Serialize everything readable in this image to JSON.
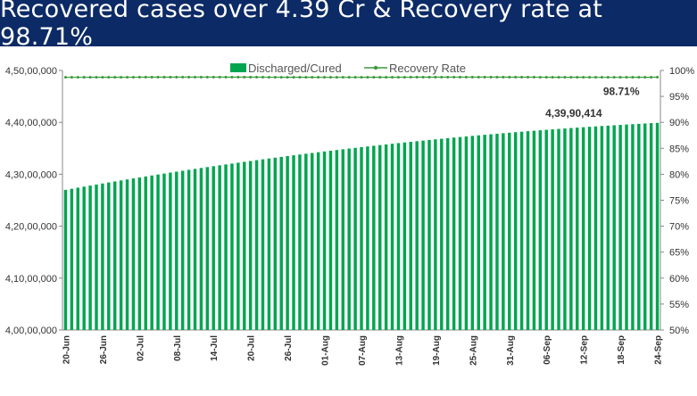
{
  "title": "Recovered cases over 4.39 Cr & Recovery rate at 98.71%",
  "colors": {
    "banner": "#0c2a66",
    "bars": "#00a550",
    "line": "#3c9a3c",
    "axis": "#888888"
  },
  "chart_data": {
    "type": "bar",
    "title": "Recovered cases over 4.39 Cr & Recovery rate at 98.71%",
    "legend_position": "top",
    "grid": false,
    "x_ticks": [
      "20-Jun",
      "26-Jun",
      "02-Jul",
      "08-Jul",
      "14-Jul",
      "20-Jul",
      "26-Jul",
      "01-Aug",
      "07-Aug",
      "13-Aug",
      "19-Aug",
      "25-Aug",
      "31-Aug",
      "06-Sep",
      "12-Sep",
      "18-Sep",
      "24-Sep"
    ],
    "y_left": {
      "min": 40000000,
      "max": 45000000,
      "ticks": [
        {
          "value": 40000000,
          "label": "4,00,00,000"
        },
        {
          "value": 41000000,
          "label": "4,10,00,000"
        },
        {
          "value": 42000000,
          "label": "4,20,00,000"
        },
        {
          "value": 43000000,
          "label": "4,30,00,000"
        },
        {
          "value": 44000000,
          "label": "4,40,00,000"
        },
        {
          "value": 45000000,
          "label": "4,50,00,000"
        }
      ]
    },
    "y_right": {
      "min": 50,
      "max": 100,
      "ticks": [
        {
          "value": 50,
          "label": "50%"
        },
        {
          "value": 55,
          "label": "55%"
        },
        {
          "value": 60,
          "label": "60%"
        },
        {
          "value": 65,
          "label": "65%"
        },
        {
          "value": 70,
          "label": "70%"
        },
        {
          "value": 75,
          "label": "75%"
        },
        {
          "value": 80,
          "label": "80%"
        },
        {
          "value": 85,
          "label": "85%"
        },
        {
          "value": 90,
          "label": "90%"
        },
        {
          "value": 95,
          "label": "95%"
        },
        {
          "value": 100,
          "label": "100%"
        }
      ]
    },
    "series": [
      {
        "name": "Discharged/Cured",
        "type": "bar",
        "axis": "left",
        "start_value": 42700000,
        "end_value": 43990414,
        "points": 97
      },
      {
        "name": "Recovery Rate",
        "type": "line",
        "axis": "right",
        "value_approx": 98.7,
        "end_value": 98.71,
        "points": 97
      }
    ],
    "annotations": [
      {
        "text": "4,39,90,414",
        "series": "Discharged/Cured",
        "at": "24-Sep"
      },
      {
        "text": "98.71%",
        "series": "Recovery Rate",
        "at": "24-Sep"
      }
    ]
  }
}
